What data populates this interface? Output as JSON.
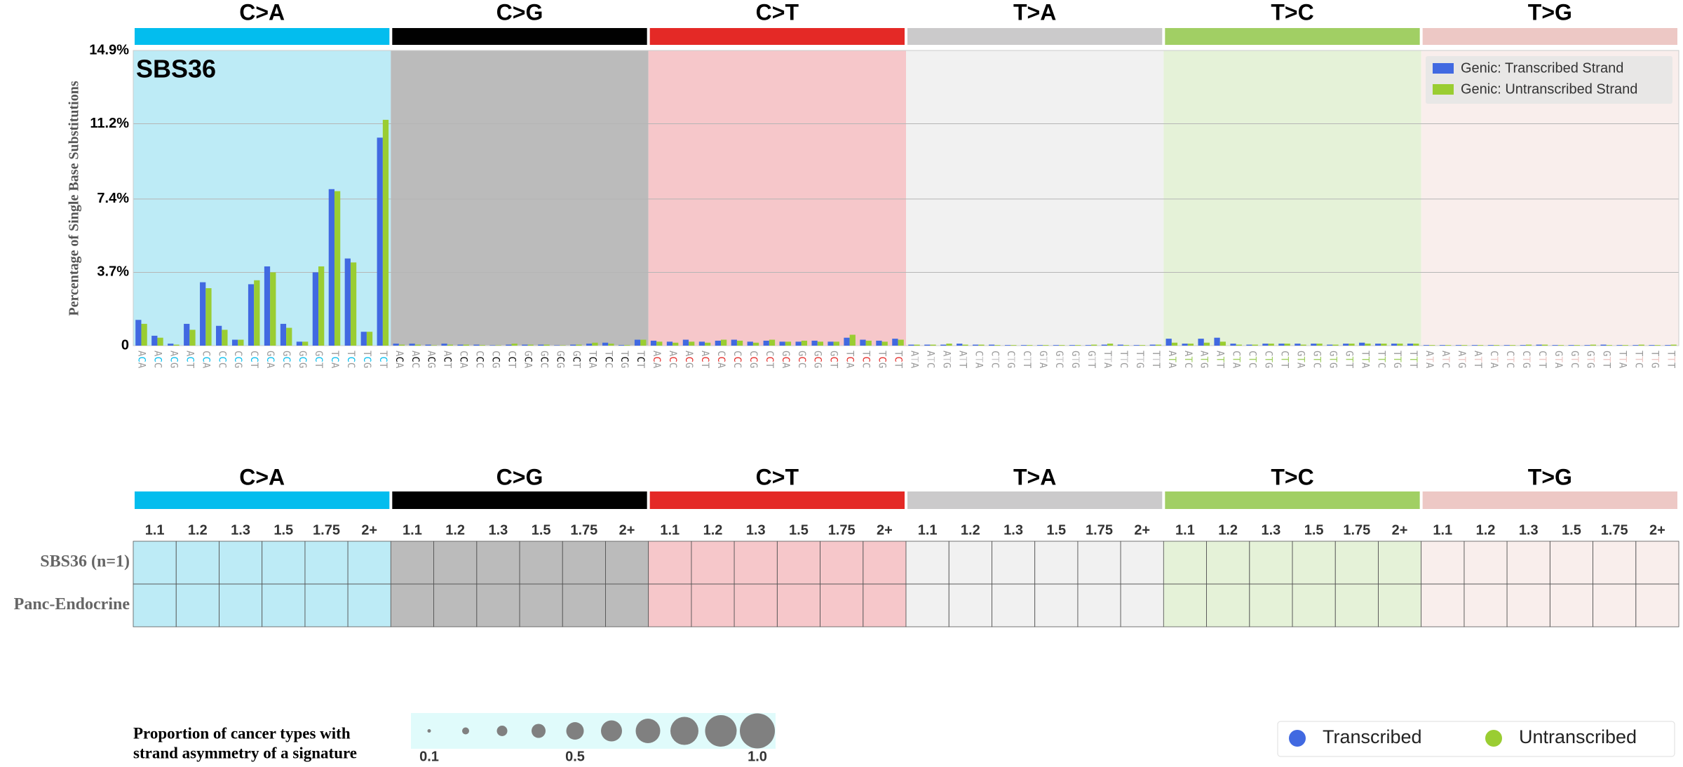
{
  "chart_data": {
    "type": "bar",
    "signature": "SBS36",
    "y_label": "Percentage of Single Base Substitutions",
    "ylim": [
      0,
      14.9
    ],
    "yticks": [
      0,
      {
        "value": 3.7,
        "label": "3.7%"
      },
      {
        "value": 7.4,
        "label": "7.4%"
      },
      {
        "value": 11.2,
        "label": "11.2%"
      },
      {
        "value": 14.9,
        "label": "14.9%"
      }
    ],
    "grid": true,
    "legend": "top-right",
    "groups": [
      {
        "label": "C>A",
        "color": "#03bdee",
        "background": "#bdebf6"
      },
      {
        "label": "C>G",
        "color": "#010101",
        "background": "#bbbbbb"
      },
      {
        "label": "C>T",
        "color": "#e42926",
        "background": "#f6c7ca"
      },
      {
        "label": "T>A",
        "color": "#cbcacb",
        "background": "#f1f1f1"
      },
      {
        "label": "T>C",
        "color": "#a1cf64",
        "background": "#e5f2d8"
      },
      {
        "label": "T>G",
        "color": "#edc8c5",
        "background": "#f9eeec"
      }
    ],
    "categories": [
      "ACA",
      "ACC",
      "ACG",
      "ACT",
      "CCA",
      "CCC",
      "CCG",
      "CCT",
      "GCA",
      "GCC",
      "GCG",
      "GCT",
      "TCA",
      "TCC",
      "TCG",
      "TCT",
      "ACA",
      "ACC",
      "ACG",
      "ACT",
      "CCA",
      "CCC",
      "CCG",
      "CCT",
      "GCA",
      "GCC",
      "GCG",
      "GCT",
      "TCA",
      "TCC",
      "TCG",
      "TCT",
      "ACA",
      "ACC",
      "ACG",
      "ACT",
      "CCA",
      "CCC",
      "CCG",
      "CCT",
      "GCA",
      "GCC",
      "GCG",
      "GCT",
      "TCA",
      "TCC",
      "TCG",
      "TCT",
      "ATA",
      "ATC",
      "ATG",
      "ATT",
      "CTA",
      "CTC",
      "CTG",
      "CTT",
      "GTA",
      "GTC",
      "GTG",
      "GTT",
      "TTA",
      "TTC",
      "TTG",
      "TTT",
      "ATA",
      "ATC",
      "ATG",
      "ATT",
      "CTA",
      "CTC",
      "CTG",
      "CTT",
      "GTA",
      "GTC",
      "GTG",
      "GTT",
      "TTA",
      "TTC",
      "TTG",
      "TTT",
      "ATA",
      "ATC",
      "ATG",
      "ATT",
      "CTA",
      "CTC",
      "CTG",
      "CTT",
      "GTA",
      "GTC",
      "GTG",
      "GTT",
      "TTA",
      "TTC",
      "TTG",
      "TTT"
    ],
    "series": [
      {
        "name": "Genic: Transcribed Strand",
        "color": "#4169e1",
        "values": [
          1.3,
          0.5,
          0.1,
          1.1,
          3.2,
          1.0,
          0.3,
          3.1,
          4.0,
          1.1,
          0.2,
          3.7,
          7.9,
          4.4,
          0.7,
          10.5,
          0.1,
          0.1,
          0.05,
          0.1,
          0.05,
          0.05,
          0.02,
          0.05,
          0.05,
          0.05,
          0.02,
          0.05,
          0.1,
          0.15,
          0.03,
          0.3,
          0.25,
          0.2,
          0.3,
          0.2,
          0.25,
          0.3,
          0.2,
          0.25,
          0.2,
          0.2,
          0.25,
          0.2,
          0.4,
          0.3,
          0.25,
          0.35,
          0.05,
          0.05,
          0.05,
          0.1,
          0.05,
          0.05,
          0.03,
          0.03,
          0.03,
          0.03,
          0.03,
          0.03,
          0.05,
          0.05,
          0.03,
          0.05,
          0.35,
          0.1,
          0.35,
          0.4,
          0.1,
          0.05,
          0.1,
          0.1,
          0.1,
          0.1,
          0.05,
          0.1,
          0.15,
          0.1,
          0.1,
          0.1,
          0.03,
          0.03,
          0.03,
          0.03,
          0.03,
          0.03,
          0.03,
          0.05,
          0.03,
          0.03,
          0.03,
          0.05,
          0.03,
          0.03,
          0.03,
          0.03
        ]
      },
      {
        "name": "Genic: Untranscribed Strand",
        "color": "#9acd32",
        "values": [
          1.1,
          0.4,
          0.05,
          0.8,
          2.9,
          0.8,
          0.3,
          3.3,
          3.7,
          0.9,
          0.2,
          4.0,
          7.8,
          4.2,
          0.7,
          11.4,
          0.05,
          0.05,
          0.02,
          0.05,
          0.05,
          0.03,
          0.02,
          0.1,
          0.05,
          0.05,
          0.02,
          0.05,
          0.15,
          0.1,
          0.03,
          0.3,
          0.2,
          0.15,
          0.2,
          0.15,
          0.3,
          0.25,
          0.15,
          0.3,
          0.2,
          0.25,
          0.2,
          0.2,
          0.55,
          0.25,
          0.2,
          0.3,
          0.05,
          0.05,
          0.1,
          0.05,
          0.05,
          0.03,
          0.03,
          0.03,
          0.03,
          0.03,
          0.03,
          0.05,
          0.1,
          0.03,
          0.03,
          0.05,
          0.15,
          0.1,
          0.15,
          0.2,
          0.05,
          0.05,
          0.1,
          0.1,
          0.05,
          0.1,
          0.05,
          0.1,
          0.1,
          0.1,
          0.1,
          0.1,
          0.03,
          0.03,
          0.03,
          0.03,
          0.03,
          0.03,
          0.05,
          0.05,
          0.03,
          0.03,
          0.05,
          0.03,
          0.03,
          0.05,
          0.03,
          0.05
        ]
      }
    ]
  },
  "strand_table": {
    "columns": [
      1.1,
      1.2,
      1.3,
      1.5,
      1.75,
      "2+"
    ],
    "rows": [
      "SBS36 (n=1)",
      "Panc-Endocrine"
    ]
  },
  "size_legend": {
    "title_lines": [
      "Proportion of cancer types with",
      "strand asymmetry of a signature"
    ],
    "values": [
      0.1,
      0.2,
      0.3,
      0.4,
      0.5,
      0.6,
      0.7,
      0.8,
      0.9,
      1.0
    ],
    "ticks": [
      0.1,
      0.5,
      {
        "value": 1,
        "label": "1.0"
      }
    ],
    "color": "#808080",
    "background": "#e0fbfb"
  },
  "strand_legend": [
    {
      "name": "Transcribed",
      "color": "#4169e1"
    },
    {
      "name": "Untranscribed",
      "color": "#9acd32"
    }
  ]
}
